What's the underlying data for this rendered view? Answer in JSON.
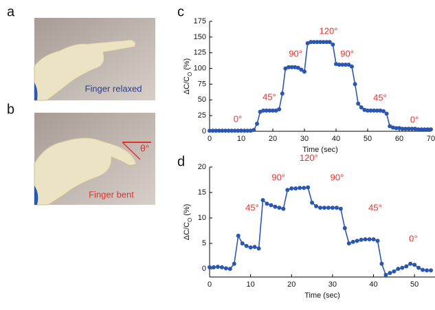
{
  "panel_labels": [
    "a",
    "b",
    "c",
    "d"
  ],
  "photos": [
    {
      "caption": "Finger relaxed",
      "caption_color": "#2b3a9a"
    },
    {
      "caption": "Finger bent",
      "caption_color": "#e8302a",
      "angle_label": "θ°"
    }
  ],
  "chart_data": [
    {
      "type": "line",
      "x_label": "Time (sec)",
      "y_label": "ΔC/C",
      "y_label_sub": "O",
      "y_label_unit": "(%)",
      "xlim": [
        0,
        70
      ],
      "xticks": [
        0,
        10,
        20,
        30,
        40,
        50,
        60,
        70
      ],
      "ylim": [
        0,
        175
      ],
      "yticks": [
        0,
        25,
        50,
        75,
        100,
        125,
        150,
        175
      ],
      "x": [
        0,
        1,
        2,
        3,
        4,
        5,
        6,
        7,
        8,
        9,
        10,
        11,
        12,
        13,
        14,
        15,
        16,
        17,
        18,
        19,
        20,
        21,
        22,
        23,
        24,
        25,
        26,
        27,
        28,
        29,
        30,
        31,
        32,
        33,
        34,
        35,
        36,
        37,
        38,
        39,
        40,
        41,
        42,
        43,
        44,
        45,
        46,
        47,
        48,
        49,
        50,
        51,
        52,
        53,
        54,
        55,
        56,
        57,
        58,
        59,
        60,
        61,
        62,
        63,
        64,
        65,
        66,
        67,
        68,
        69,
        70
      ],
      "series": [
        {
          "color": "#2a56b0",
          "values": [
            1,
            1,
            1,
            1,
            1,
            1,
            1,
            1,
            1,
            1,
            1,
            1,
            1,
            1,
            2,
            12,
            31,
            33,
            33,
            33,
            33,
            33,
            35,
            60,
            100,
            102,
            102,
            102,
            101,
            98,
            95,
            140,
            142,
            142,
            142,
            142,
            142,
            142,
            142,
            138,
            107,
            106,
            106,
            106,
            106,
            103,
            75,
            44,
            38,
            34,
            33,
            33,
            33,
            33,
            33,
            32,
            28,
            8,
            6,
            5,
            5,
            4,
            4,
            4,
            4,
            4,
            3,
            3,
            3,
            3,
            3
          ]
        }
      ],
      "annotations": [
        {
          "text": "0°",
          "x": 8.9,
          "y": 18.6
        },
        {
          "text": "45°",
          "x": 18.9,
          "y": 53.6
        },
        {
          "text": "90°",
          "x": 27.2,
          "y": 122.5
        },
        {
          "text": "120°",
          "x": 37.6,
          "y": 158.6
        },
        {
          "text": "90°",
          "x": 43.5,
          "y": 122.5
        },
        {
          "text": "45°",
          "x": 53.9,
          "y": 52.5
        },
        {
          "text": "0°",
          "x": 64.8,
          "y": 17.5
        }
      ]
    },
    {
      "type": "line",
      "x_label": "Time (sec)",
      "y_label": "ΔC/C",
      "y_label_sub": "O",
      "y_label_unit": "(%)",
      "xlim": [
        0,
        55
      ],
      "xticks": [
        0,
        10,
        20,
        30,
        40,
        50
      ],
      "ylim": [
        -1.6,
        20
      ],
      "yticks": [
        0,
        5,
        10,
        15,
        20
      ],
      "x": [
        0,
        1,
        2,
        3,
        4,
        5,
        6,
        7,
        8,
        9,
        10,
        11,
        12,
        13,
        14,
        15,
        16,
        17,
        18,
        19,
        20,
        21,
        22,
        23,
        24,
        25,
        26,
        27,
        28,
        29,
        30,
        31,
        32,
        33,
        34,
        35,
        36,
        37,
        38,
        39,
        40,
        41,
        42,
        43,
        44,
        45,
        46,
        47,
        48,
        49,
        50,
        51,
        52,
        53,
        54
      ],
      "series": [
        {
          "color": "#2a56b0",
          "values": [
            0.3,
            0.3,
            0.4,
            0.3,
            0.1,
            0,
            1,
            6.5,
            5,
            4.5,
            4.2,
            4.3,
            4,
            13.5,
            12.8,
            12.5,
            12.2,
            12,
            11.8,
            15.5,
            15.8,
            15.8,
            15.9,
            15.9,
            16,
            13,
            12.3,
            12,
            12,
            12,
            12,
            12,
            11.8,
            8,
            5,
            5.3,
            5.5,
            5.7,
            5.8,
            5.8,
            5.8,
            5.5,
            1,
            -1.2,
            -0.8,
            -0.5,
            0,
            0.2,
            0.5,
            1,
            0.8,
            0.2,
            -0.2,
            -0.3,
            -0.3
          ]
        }
      ],
      "annotations": [
        {
          "text": "45°",
          "x": 10.4,
          "y": 11.9
        },
        {
          "text": "90°",
          "x": 16.8,
          "y": 17.8
        },
        {
          "text": "120°",
          "x": 24.2,
          "y": 21.7
        },
        {
          "text": "90°",
          "x": 31.1,
          "y": 17.8
        },
        {
          "text": "45°",
          "x": 40.4,
          "y": 11.9
        },
        {
          "text": "0°",
          "x": 49.7,
          "y": 5.8
        }
      ]
    }
  ]
}
